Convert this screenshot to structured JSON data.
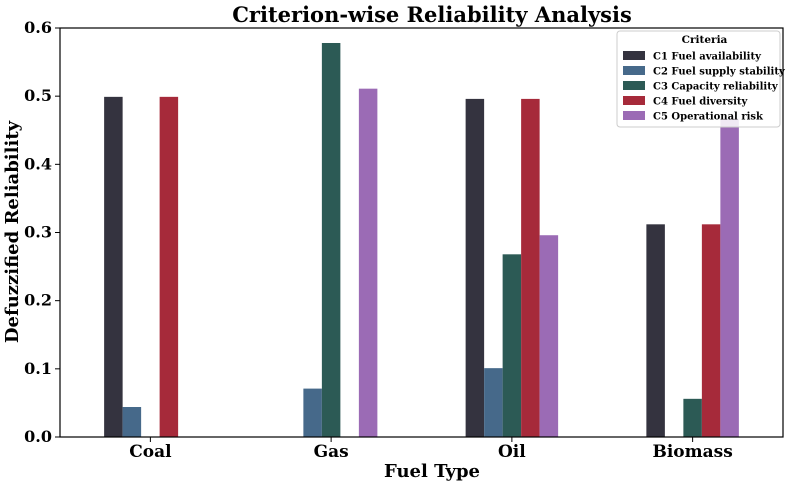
{
  "chart_data": {
    "type": "bar",
    "title": "Criterion-wise Reliability Analysis",
    "xlabel": "Fuel Type",
    "ylabel": "Defuzzified Reliability",
    "categories": [
      "Coal",
      "Gas",
      "Oil",
      "Biomass"
    ],
    "ylim": [
      0,
      0.6
    ],
    "yticks": [
      "0.0",
      "0.1",
      "0.2",
      "0.3",
      "0.4",
      "0.5",
      "0.6"
    ],
    "grid": false,
    "legend_title": "Criteria",
    "legend_position": "top-right",
    "series": [
      {
        "name": "C1 Fuel availability",
        "color": "#34333f",
        "values": [
          0.499,
          0.0,
          0.496,
          0.312
        ]
      },
      {
        "name": "C2 Fuel supply stability",
        "color": "#46698a",
        "values": [
          0.044,
          0.071,
          0.101,
          0.0
        ]
      },
      {
        "name": "C3 Capacity reliability",
        "color": "#2c5a55",
        "values": [
          0.0,
          0.578,
          0.268,
          0.056
        ]
      },
      {
        "name": "C4 Fuel diversity",
        "color": "#a62a3a",
        "values": [
          0.499,
          0.0,
          0.496,
          0.312
        ]
      },
      {
        "name": "C5 Operational risk",
        "color": "#9b6bb5",
        "values": [
          0.0,
          0.511,
          0.296,
          0.466
        ]
      }
    ]
  }
}
